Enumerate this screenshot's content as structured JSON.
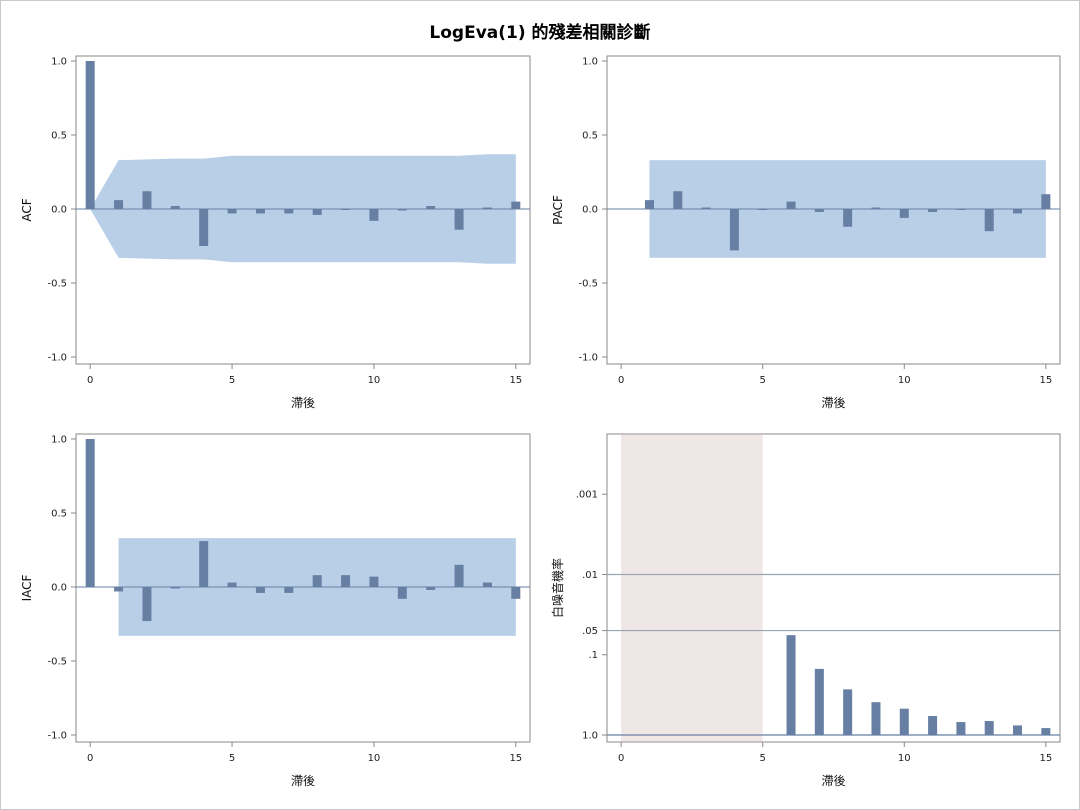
{
  "title": "LogEva(1) 的殘差相關診斷",
  "colors": {
    "bar": "#667fa3",
    "band": "#b9cfe8",
    "shade": "#efe7e5",
    "axis": "#888888",
    "ref": "#9aa4b2"
  },
  "chart_data": [
    {
      "id": "acf",
      "type": "bar",
      "ylabel": "ACF",
      "xlabel": "滯後",
      "xlim": [
        -0.5,
        15.5
      ],
      "ylim": [
        -1.0,
        1.0
      ],
      "xticks": [
        0,
        5,
        10,
        15
      ],
      "yticks": [
        1.0,
        0.5,
        0.0,
        -0.5,
        -1.0
      ],
      "ytick_labels": [
        "1.0",
        "0.5",
        "0.0",
        "-0.5",
        "-1.0"
      ],
      "lags": [
        0,
        1,
        2,
        3,
        4,
        5,
        6,
        7,
        8,
        9,
        10,
        11,
        12,
        13,
        14,
        15
      ],
      "values": [
        1.0,
        0.06,
        0.12,
        0.02,
        -0.25,
        -0.03,
        -0.03,
        -0.03,
        -0.04,
        0.0,
        -0.08,
        -0.01,
        0.02,
        -0.14,
        0.01,
        0.05
      ],
      "band_upper": [
        0.0,
        0.33,
        0.335,
        0.34,
        0.34,
        0.36,
        0.36,
        0.36,
        0.36,
        0.36,
        0.36,
        0.36,
        0.36,
        0.36,
        0.37,
        0.37
      ],
      "band_lower": [
        0.0,
        -0.33,
        -0.335,
        -0.34,
        -0.34,
        -0.36,
        -0.36,
        -0.36,
        -0.36,
        -0.36,
        -0.36,
        -0.36,
        -0.36,
        -0.36,
        -0.37,
        -0.37
      ]
    },
    {
      "id": "pacf",
      "type": "bar",
      "ylabel": "PACF",
      "xlabel": "滯後",
      "xlim": [
        -0.5,
        15.5
      ],
      "ylim": [
        -1.0,
        1.0
      ],
      "xticks": [
        0,
        5,
        10,
        15
      ],
      "yticks": [
        1.0,
        0.5,
        0.0,
        -0.5,
        -1.0
      ],
      "ytick_labels": [
        "1.0",
        "0.5",
        "0.0",
        "-0.5",
        "-1.0"
      ],
      "lags": [
        1,
        2,
        3,
        4,
        5,
        6,
        7,
        8,
        9,
        10,
        11,
        12,
        13,
        14,
        15
      ],
      "values": [
        0.06,
        0.12,
        0.01,
        -0.28,
        0.0,
        0.05,
        -0.02,
        -0.12,
        0.01,
        -0.06,
        -0.02,
        0.0,
        -0.15,
        -0.03,
        0.1
      ],
      "band_range": [
        1,
        15
      ],
      "band_upper": 0.33,
      "band_lower": -0.33
    },
    {
      "id": "iacf",
      "type": "bar",
      "ylabel": "IACF",
      "xlabel": "滯後",
      "xlim": [
        -0.5,
        15.5
      ],
      "ylim": [
        -1.0,
        1.0
      ],
      "xticks": [
        0,
        5,
        10,
        15
      ],
      "yticks": [
        1.0,
        0.5,
        0.0,
        -0.5,
        -1.0
      ],
      "ytick_labels": [
        "1.0",
        "0.5",
        "0.0",
        "-0.5",
        "-1.0"
      ],
      "lags": [
        0,
        1,
        2,
        3,
        4,
        5,
        6,
        7,
        8,
        9,
        10,
        11,
        12,
        13,
        14,
        15
      ],
      "values": [
        1.0,
        -0.03,
        -0.23,
        -0.01,
        0.31,
        0.03,
        -0.04,
        -0.04,
        0.08,
        0.08,
        0.07,
        -0.08,
        -0.02,
        0.15,
        0.03,
        -0.08
      ],
      "band_range": [
        1,
        15
      ],
      "band_upper": 0.33,
      "band_lower": -0.33
    },
    {
      "id": "whitenoise",
      "type": "bar",
      "ylabel": "白噪音機率",
      "xlabel": "滯後",
      "xlim": [
        -0.5,
        15.5
      ],
      "yscale": "log, reversed (1.0 at bottom)",
      "ylim_p": [
        1.0,
        3e-05
      ],
      "xticks": [
        0,
        5,
        10,
        15
      ],
      "yticks_p": [
        0.001,
        0.01,
        0.05,
        0.1,
        1.0
      ],
      "ytick_labels": [
        ".001",
        ".01",
        ".05",
        ".1",
        "1.0"
      ],
      "ref_lines_p": [
        0.01,
        0.05
      ],
      "shade_range": [
        0,
        5
      ],
      "lags": [
        6,
        7,
        8,
        9,
        10,
        11,
        12,
        13,
        14,
        15
      ],
      "pvalues": [
        0.057,
        0.15,
        0.27,
        0.39,
        0.47,
        0.58,
        0.69,
        0.67,
        0.76,
        0.82
      ]
    }
  ]
}
